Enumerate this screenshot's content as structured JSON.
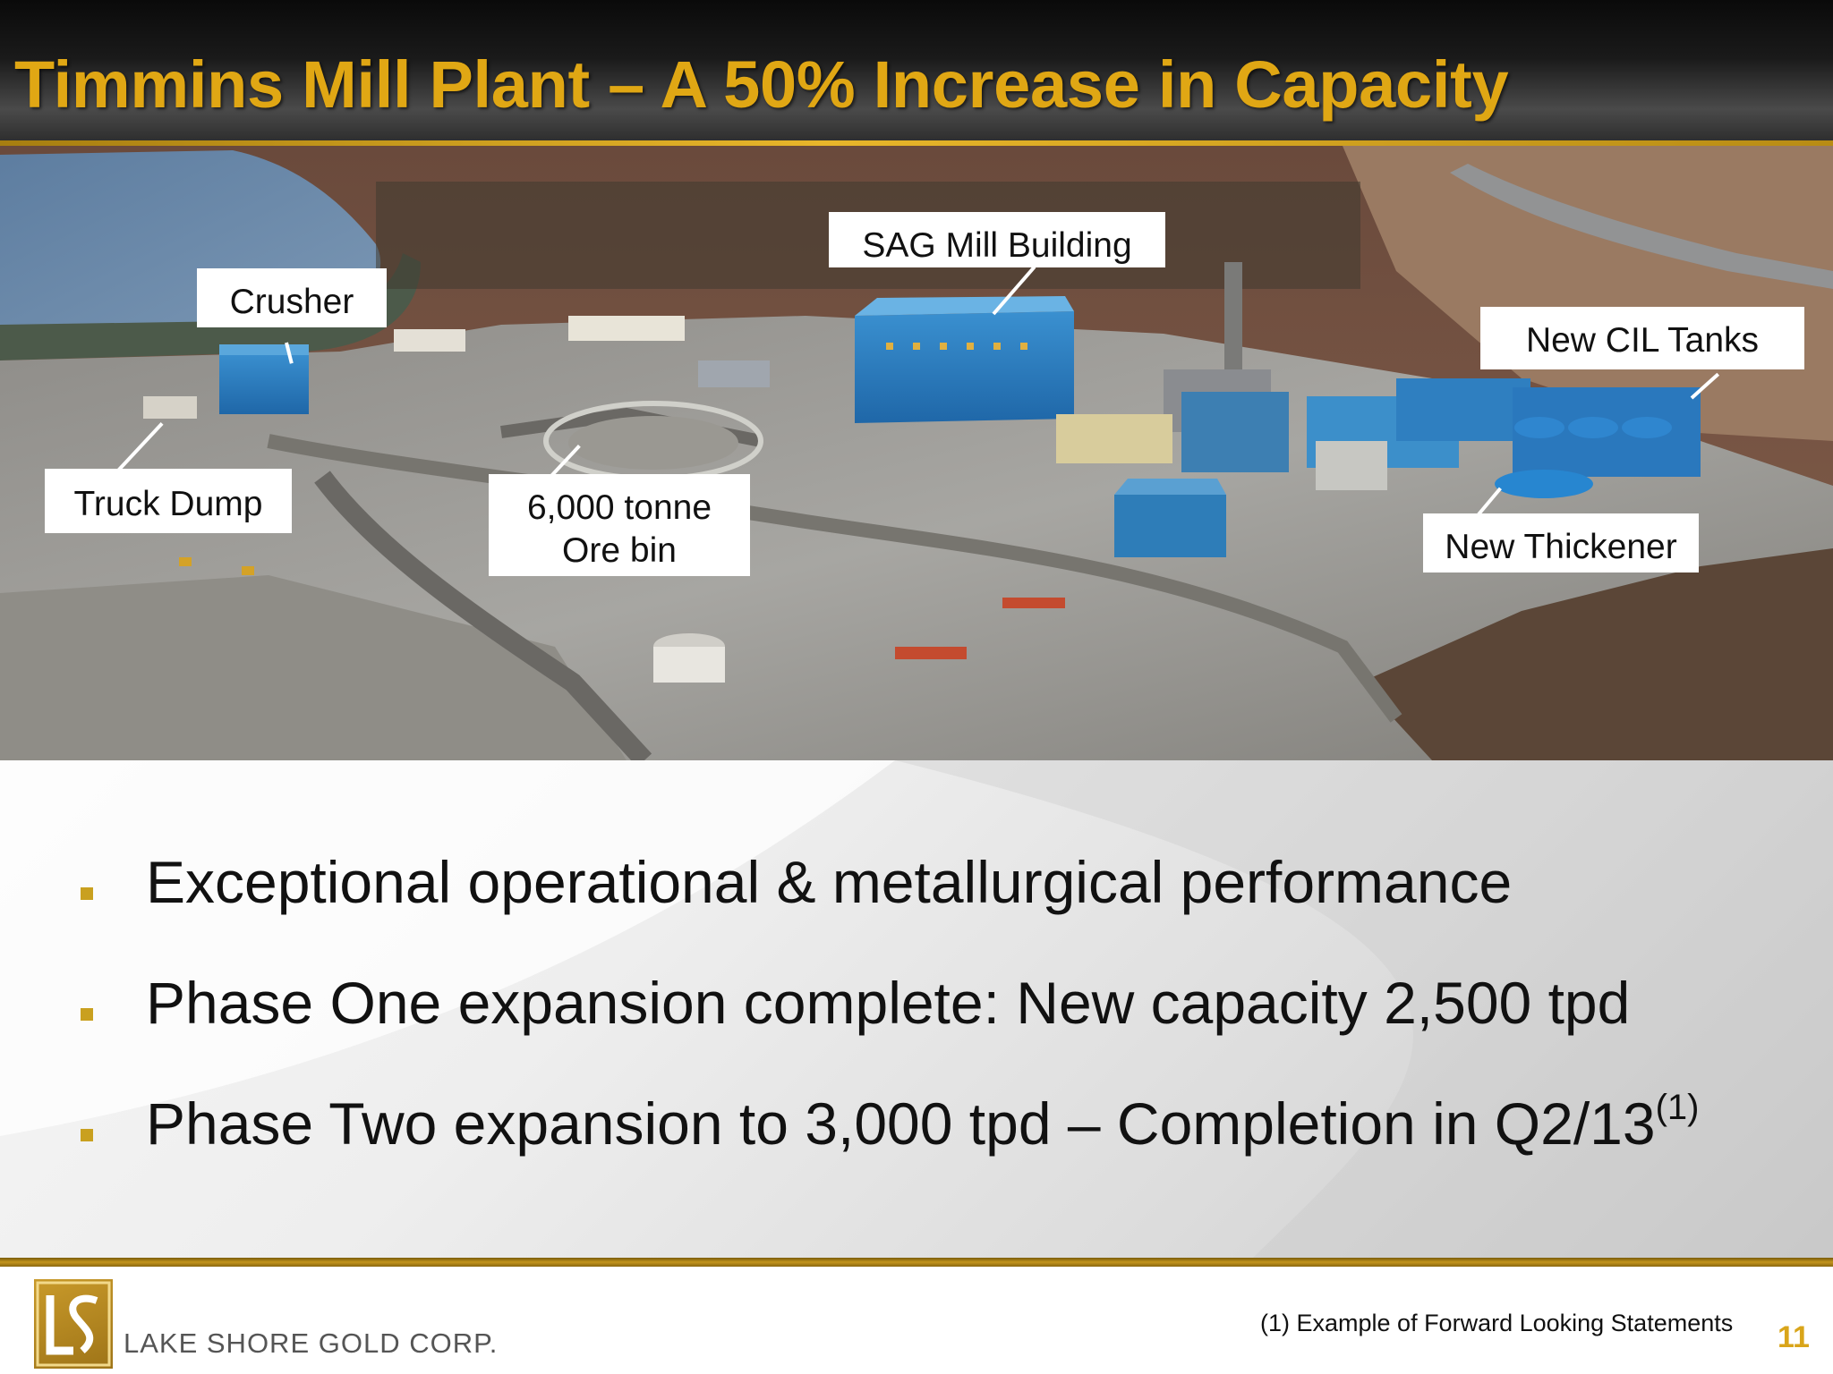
{
  "slide": {
    "title": "Timmins Mill Plant – A 50% Increase in Capacity",
    "page_number": "11"
  },
  "photo": {
    "callouts": {
      "sag_mill": "SAG Mill Building",
      "crusher": "Crusher",
      "new_cil_tanks": "New CIL Tanks",
      "truck_dump": "Truck Dump",
      "ore_bin_line1": "6,000 tonne",
      "ore_bin_line2": "Ore bin",
      "new_thickener": "New Thickener"
    }
  },
  "bullets": [
    {
      "text": "Exceptional operational & metallurgical performance",
      "superscript": ""
    },
    {
      "text": "Phase One expansion complete: New capacity 2,500 tpd",
      "superscript": ""
    },
    {
      "text": "Phase Two expansion to 3,000 tpd – Completion in Q2/13",
      "superscript": "(1)"
    }
  ],
  "footer": {
    "company_name": "LAKE SHORE GOLD CORP.",
    "footnote": "(1) Example of Forward Looking Statements"
  },
  "colors": {
    "title_gold": "#e0a714",
    "accent_gold": "#c9a01f",
    "building_blue": "#2f7fc0"
  }
}
